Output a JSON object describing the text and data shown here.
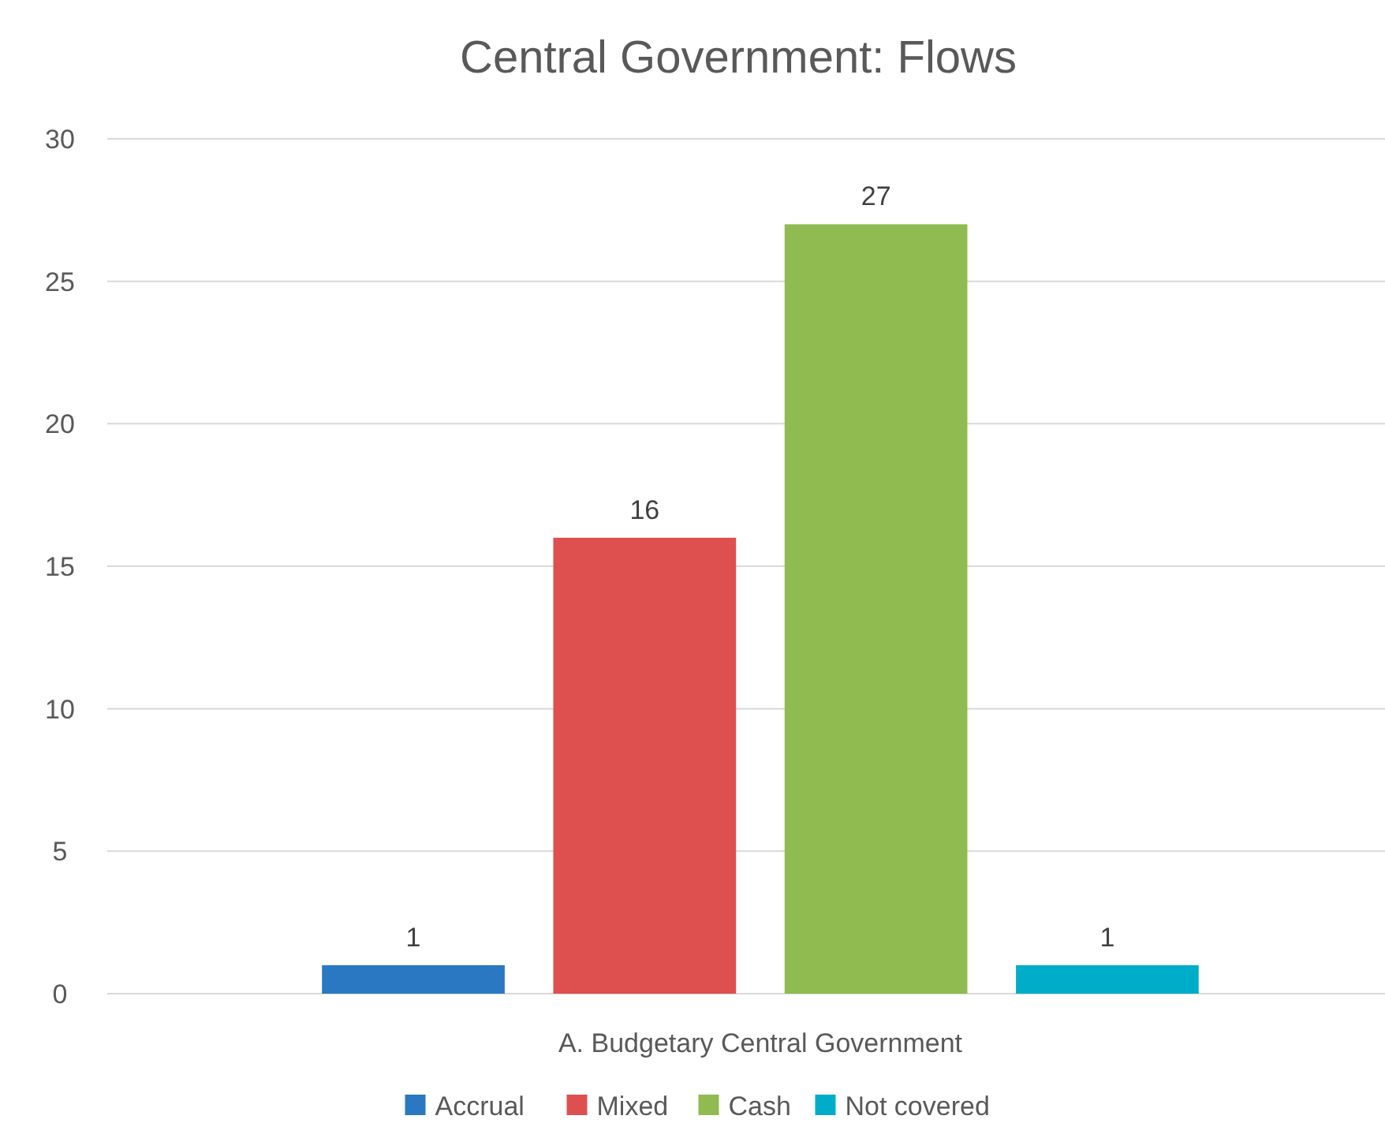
{
  "chart_data": {
    "type": "bar",
    "title": "Central Government: Flows",
    "categories": [
      "A. Budgetary Central Government"
    ],
    "series": [
      {
        "name": "Accrual",
        "color": "#2a78c2",
        "values": [
          1
        ]
      },
      {
        "name": "Mixed",
        "color": "#de4f4f",
        "values": [
          16
        ]
      },
      {
        "name": "Cash",
        "color": "#8fbb50",
        "values": [
          27
        ]
      },
      {
        "name": "Not covered",
        "color": "#00adc8",
        "values": [
          1
        ]
      }
    ],
    "ylim": [
      0,
      30
    ],
    "yticks": [
      0,
      5,
      10,
      15,
      20,
      25,
      30
    ],
    "grid": "y",
    "legend": "bottom",
    "data_labels": true
  }
}
